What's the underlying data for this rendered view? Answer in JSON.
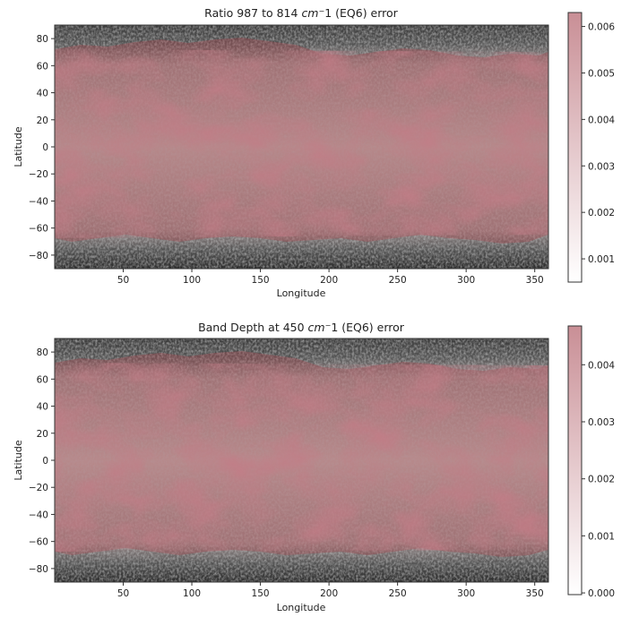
{
  "maps": [
    {
      "title_prefix": "Ratio 987 to 814 ",
      "title_unit": "cm",
      "title_sup": "−",
      "title_suffix": "1 (EQ6) error",
      "xlabel": "Longitude",
      "ylabel": "Latitude",
      "x_ticks": [
        "50",
        "100",
        "150",
        "200",
        "250",
        "300",
        "350"
      ],
      "x_tick_values": [
        50,
        100,
        150,
        200,
        250,
        300,
        350
      ],
      "y_ticks": [
        "80",
        "60",
        "40",
        "20",
        "0",
        "−20",
        "−40",
        "−60",
        "−80"
      ],
      "y_tick_values": [
        80,
        60,
        40,
        20,
        0,
        -20,
        -40,
        -60,
        -80
      ],
      "xlim": [
        0,
        360
      ],
      "ylim": [
        -90,
        90
      ],
      "colorbar": {
        "ticks": [
          "0.006",
          "0.005",
          "0.004",
          "0.003",
          "0.002",
          "0.001"
        ],
        "tick_values": [
          0.006,
          0.005,
          0.004,
          0.003,
          0.002,
          0.001
        ],
        "range": [
          0.0005,
          0.0063
        ],
        "color_low": "#ffffff",
        "color_high": "#c98f96"
      }
    },
    {
      "title_prefix": "Band Depth at 450 ",
      "title_unit": "cm",
      "title_sup": "−",
      "title_suffix": "1 (EQ6) error",
      "xlabel": "Longitude",
      "ylabel": "Latitude",
      "x_ticks": [
        "50",
        "100",
        "150",
        "200",
        "250",
        "300",
        "350"
      ],
      "x_tick_values": [
        50,
        100,
        150,
        200,
        250,
        300,
        350
      ],
      "y_ticks": [
        "80",
        "60",
        "40",
        "20",
        "0",
        "−20",
        "−40",
        "−60",
        "−80"
      ],
      "y_tick_values": [
        80,
        60,
        40,
        20,
        0,
        -20,
        -40,
        -60,
        -80
      ],
      "xlim": [
        0,
        360
      ],
      "ylim": [
        -90,
        90
      ],
      "colorbar": {
        "ticks": [
          "0.004",
          "0.003",
          "0.002",
          "0.001",
          "0.000"
        ],
        "tick_values": [
          0.004,
          0.003,
          0.002,
          0.001,
          0.0
        ],
        "range": [
          -3e-05,
          0.00468
        ],
        "color_low": "#ffffff",
        "color_high": "#c98f96"
      }
    }
  ],
  "colors": {
    "basemap_dark": "#2e2e2e",
    "basemap_mid": "#8a8a8a",
    "error_overlay": "#a8464e"
  }
}
